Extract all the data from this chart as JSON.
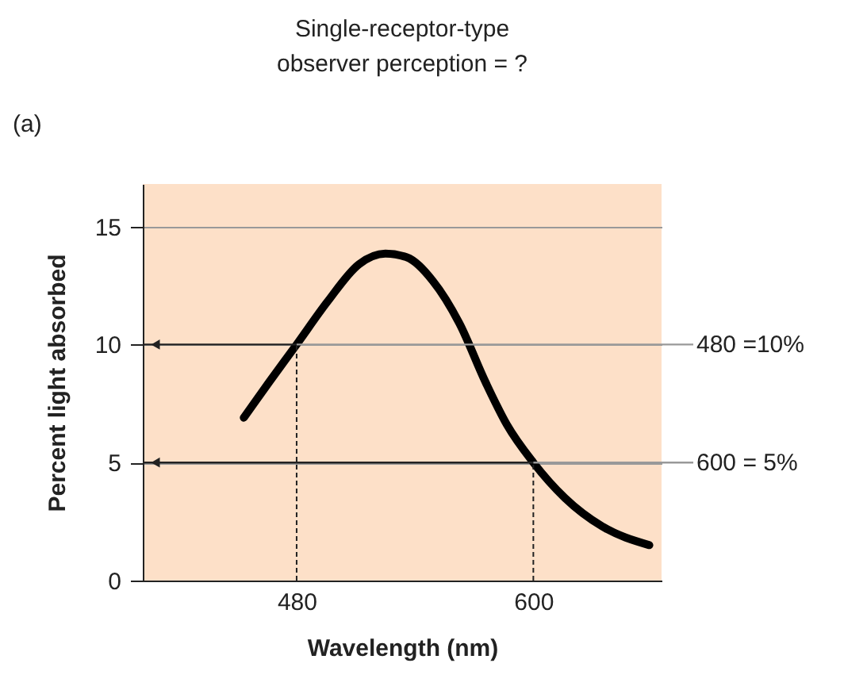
{
  "chart_data": {
    "type": "line",
    "title": "Single-receptor-type\nobserver perception = ?",
    "xlabel": "Wavelength (nm)",
    "ylabel": "Percent light absorbed",
    "x": [
      453.2,
      466,
      480,
      495.5,
      511.6,
      525,
      535.7,
      549,
      562.5,
      575.8,
      586.6,
      600,
      616,
      634.8,
      658.8
    ],
    "series": [
      {
        "color": "#000000",
        "values": [
          6.9,
          8.4,
          10,
          11.8,
          13.4,
          13.85,
          13.7,
          12.7,
          10.9,
          8.4,
          6.6,
          5,
          3.5,
          2.3,
          1.5
        ]
      }
    ],
    "xlim": [
      402,
      665
    ],
    "xticks": [
      480,
      600
    ],
    "ylim": [
      0,
      16.8
    ],
    "yticks": [
      0,
      5,
      10,
      15
    ],
    "grid": "y",
    "annotations": [
      "(a)"
    ],
    "ref_lines": [
      {
        "axis": "y",
        "value": 10,
        "label": "480 =10%"
      },
      {
        "axis": "y",
        "value": 5,
        "label": "600 = 5%"
      },
      {
        "axis": "x",
        "value": 480,
        "line_style": "dashed"
      },
      {
        "axis": "x",
        "value": 600,
        "line_style": "dashed"
      }
    ]
  }
}
